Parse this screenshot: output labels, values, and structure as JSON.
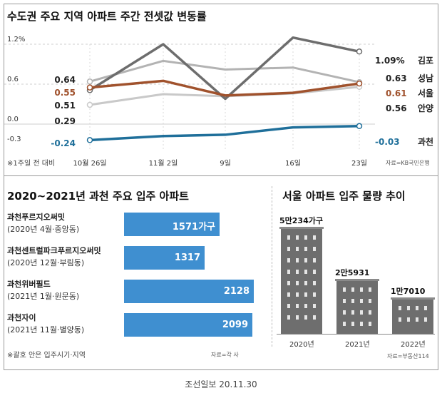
{
  "caption": "조선일보 20.11.30",
  "chart_data": [
    {
      "type": "line",
      "title": "수도권 주요 지역 아파트 주간 전셋값 변동률",
      "unit": "%",
      "ytick_labels": [
        "1.2%",
        "0.6",
        "0.0",
        "-0.3"
      ],
      "ylim": [
        -0.45,
        1.4
      ],
      "x": [
        "10월 26일",
        "11월 2일",
        "9일",
        "16일",
        "23일"
      ],
      "footnote": "※1주일 전 대비",
      "source": "자료=KB국민은행",
      "series": [
        {
          "name": "김포",
          "values": [
            0.51,
            1.2,
            0.38,
            1.3,
            1.09
          ],
          "start_label": "",
          "end_label": "1.09%",
          "color": "#6d6d6d"
        },
        {
          "name": "성남",
          "values": [
            0.64,
            0.95,
            0.82,
            0.85,
            0.63
          ],
          "start_label": "0.64",
          "end_label": "0.63",
          "color": "#b3b3b3"
        },
        {
          "name": "서울",
          "values": [
            0.55,
            0.65,
            0.43,
            0.47,
            0.61
          ],
          "start_label": "0.55",
          "end_label": "0.61",
          "color": "#a0522d"
        },
        {
          "name": "안양",
          "values": [
            0.29,
            0.45,
            0.42,
            0.46,
            0.56
          ],
          "start_label": "0.29",
          "end_label": "0.56",
          "color": "#c9c9c9"
        },
        {
          "name": "과천",
          "values": [
            -0.24,
            -0.18,
            -0.16,
            -0.05,
            -0.03
          ],
          "start_label": "-0.24",
          "end_label": "-0.03",
          "color": "#1f6f9a"
        }
      ],
      "extra_start_labels": [
        "0.51"
      ]
    },
    {
      "type": "bar",
      "orientation": "horizontal",
      "title": "2020~2021년 과천 주요 입주 아파트",
      "categories": [
        {
          "name": "과천푸르지오써밋",
          "detail": "(2020년 4월·중앙동)"
        },
        {
          "name": "과천센트럴파크푸르지오써밋",
          "detail": "(2020년 12월·부림동)"
        },
        {
          "name": "과천위버필드",
          "detail": "(2021년 1월·원문동)"
        },
        {
          "name": "과천자이",
          "detail": "(2021년 11월·별양동)"
        }
      ],
      "values": [
        1571,
        1317,
        2128,
        2099
      ],
      "value_labels": [
        "1571가구",
        "1317",
        "2128",
        "2099"
      ],
      "max": 2128,
      "footnote": "※괄호 안은 입주시기·지역",
      "source": "자료=각 사"
    },
    {
      "type": "bar",
      "title": "서울 아파트 입주 물량 추이",
      "categories": [
        "2020년",
        "2021년",
        "2022년"
      ],
      "values": [
        50234,
        25931,
        17010
      ],
      "value_labels": [
        "5만234가구",
        "2만5931",
        "1만7010"
      ],
      "source": "자료=부동산114"
    }
  ]
}
